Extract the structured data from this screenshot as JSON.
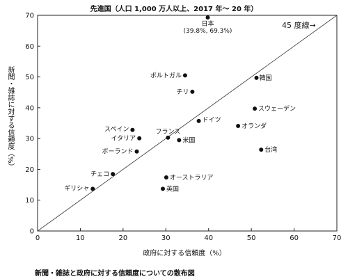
{
  "chart_data": {
    "type": "scatter",
    "title": "先進国（人口 1,000 万人以上、2017 年〜 20 年）",
    "xlabel": "政府に対する信頼度（%）",
    "ylabel": "新聞・雑誌に対する信頼度（%）",
    "caption": "新聞・雑誌と政府に対する信頼度についての散布図",
    "xlim": [
      0,
      70
    ],
    "ylim": [
      0,
      70
    ],
    "xticks": [
      0,
      10,
      20,
      30,
      40,
      50,
      60,
      70
    ],
    "yticks": [
      0,
      10,
      20,
      30,
      40,
      50,
      60,
      70
    ],
    "grid": false,
    "reference_line": {
      "label": "45 度線→",
      "from": [
        0,
        0
      ],
      "to": [
        70,
        70
      ]
    },
    "points": [
      {
        "label": "日本",
        "sublabel": "(39.8%, 69.3%)",
        "x": 39.8,
        "y": 69.3
      },
      {
        "label": "韓国",
        "x": 51.2,
        "y": 49.7
      },
      {
        "label": "ポルトガル",
        "x": 34.5,
        "y": 50.5
      },
      {
        "label": "チリ",
        "x": 36.2,
        "y": 45.2
      },
      {
        "label": "スウェーデン",
        "x": 50.8,
        "y": 39.7
      },
      {
        "label": "ドイツ",
        "x": 37.7,
        "y": 35.7
      },
      {
        "label": "オランダ",
        "x": 46.9,
        "y": 34.1
      },
      {
        "label": "スペイン",
        "x": 22.2,
        "y": 32.8
      },
      {
        "label": "イタリア",
        "x": 23.8,
        "y": 30.1
      },
      {
        "label": "フランス",
        "x": 30.5,
        "y": 30.3
      },
      {
        "label": "米国",
        "x": 33.1,
        "y": 29.5
      },
      {
        "label": "台湾",
        "x": 52.3,
        "y": 26.4
      },
      {
        "label": "ポーランド",
        "x": 23.2,
        "y": 25.8
      },
      {
        "label": "チェコ",
        "x": 17.6,
        "y": 18.5
      },
      {
        "label": "オーストラリア",
        "x": 30.1,
        "y": 17.4
      },
      {
        "label": "ギリシャ",
        "x": 12.9,
        "y": 13.7
      },
      {
        "label": "英国",
        "x": 29.3,
        "y": 13.7
      }
    ]
  }
}
